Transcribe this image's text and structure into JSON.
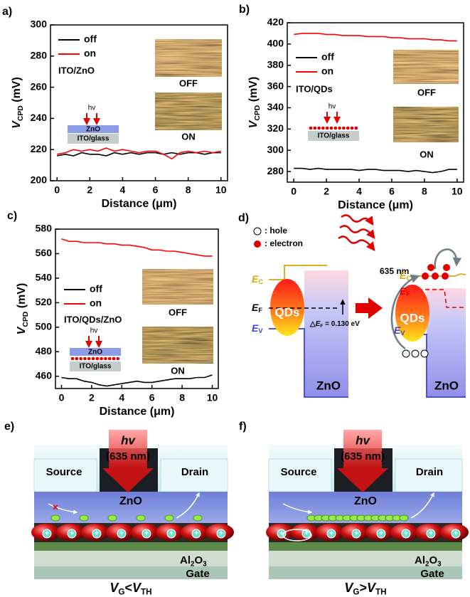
{
  "chart_data": [
    {
      "type": "line",
      "panel_label": "a)",
      "xlabel": "Distance (μm)",
      "ylabel": [
        "V",
        "CPD",
        " (mV)"
      ],
      "x": [
        0,
        0.5,
        1,
        1.5,
        2,
        2.5,
        3,
        3.5,
        4,
        4.5,
        5,
        5.5,
        6,
        6.5,
        7,
        7.5,
        8,
        8.5,
        9,
        9.5,
        10
      ],
      "xlim": [
        -0.4,
        10.4
      ],
      "xticks": [
        0,
        2,
        4,
        6,
        8,
        10
      ],
      "ylim": [
        200,
        300
      ],
      "yticks": [
        200,
        220,
        240,
        260,
        280,
        300
      ],
      "series": [
        {
          "name": "off",
          "color": "#000000",
          "values": [
            216,
            217,
            216,
            218,
            217,
            217,
            216,
            218,
            217,
            218,
            217,
            218,
            218,
            217,
            218,
            217,
            218,
            218,
            217,
            218,
            218
          ]
        },
        {
          "name": "on",
          "color": "#ff0000",
          "values": [
            217,
            218,
            220,
            219,
            220,
            219,
            221,
            219,
            220,
            219,
            218,
            219,
            219,
            217,
            214,
            218,
            219,
            218,
            219,
            218,
            219
          ]
        }
      ],
      "material": "ITO/ZnO",
      "image_labels": [
        "OFF",
        "ON"
      ],
      "diagram_labels": [
        "hv",
        "ZnO",
        "ITO/glass"
      ]
    },
    {
      "type": "line",
      "panel_label": "b)",
      "xlabel": "Distance (μm)",
      "ylabel": [
        "V",
        "CPD",
        " (mV)"
      ],
      "x": [
        0,
        0.5,
        1,
        1.5,
        2,
        2.5,
        3,
        3.5,
        4,
        4.5,
        5,
        5.5,
        6,
        6.5,
        7,
        7.5,
        8,
        8.5,
        9,
        9.5,
        10
      ],
      "xlim": [
        -0.4,
        10.4
      ],
      "xticks": [
        0,
        2,
        4,
        6,
        8,
        10
      ],
      "ylim": [
        270,
        420
      ],
      "yticks": [
        280,
        300,
        320,
        340,
        360,
        380,
        400,
        420
      ],
      "series": [
        {
          "name": "off",
          "color": "#000000",
          "values": [
            283,
            283,
            282,
            283,
            282,
            282,
            282,
            282,
            281,
            282,
            282,
            281,
            281,
            281,
            280,
            281,
            280,
            279,
            280,
            282,
            282
          ]
        },
        {
          "name": "on",
          "color": "#ff0000",
          "values": [
            409,
            410,
            410,
            410,
            409,
            409,
            408,
            408,
            408,
            407,
            407,
            407,
            406,
            406,
            405,
            405,
            405,
            404,
            404,
            403,
            403
          ]
        }
      ],
      "material": "ITO/QDs",
      "image_labels": [
        "OFF",
        "ON"
      ],
      "diagram_labels": [
        "hv",
        "ITO/glass"
      ]
    },
    {
      "type": "line",
      "panel_label": "c)",
      "xlabel": "Distance (μm)",
      "ylabel": [
        "V",
        "CPD",
        " (mV)"
      ],
      "x": [
        0,
        0.5,
        1,
        1.5,
        2,
        2.5,
        3,
        3.5,
        4,
        4.5,
        5,
        5.5,
        6,
        6.5,
        7,
        7.5,
        8,
        8.5,
        9,
        9.5,
        10
      ],
      "xlim": [
        -0.4,
        10.4
      ],
      "xticks": [
        0,
        2,
        4,
        6,
        8,
        10
      ],
      "ylim": [
        450,
        580
      ],
      "yticks": [
        460,
        480,
        500,
        520,
        540,
        560,
        580
      ],
      "series": [
        {
          "name": "off",
          "color": "#000000",
          "values": [
            459,
            458,
            458,
            456,
            455,
            453,
            452,
            453,
            454,
            455,
            456,
            455,
            455,
            456,
            457,
            458,
            458,
            458,
            459,
            459,
            461
          ]
        },
        {
          "name": "on",
          "color": "#ff0000",
          "values": [
            572,
            570,
            570,
            569,
            569,
            569,
            568,
            568,
            567,
            567,
            566,
            565,
            563,
            563,
            562,
            562,
            561,
            560,
            559,
            558,
            558
          ]
        }
      ],
      "material": "ITO/QDs/ZnO",
      "image_labels": [
        "OFF",
        "ON"
      ],
      "diagram_labels": [
        "hv",
        "ZnO",
        "ITO/glass"
      ]
    }
  ],
  "panel_d": {
    "label": "d)",
    "hole": ": hole",
    "electron": ": electron",
    "wavelength": "635 nm",
    "ec": [
      "E",
      "C"
    ],
    "ef": [
      "E",
      "F"
    ],
    "ev": [
      "E",
      "V"
    ],
    "qds": "QDs",
    "zno": "ZnO",
    "delta_ef": [
      "△",
      "E",
      "F",
      " = 0.130 eV"
    ]
  },
  "panel_e": {
    "label": "e)",
    "hv": "hv",
    "wavelength": "(635 nm)",
    "source": "Source",
    "drain": "Drain",
    "zno": "ZnO",
    "dielectric": [
      "Al",
      "2",
      "O",
      "3"
    ],
    "gate": "Gate",
    "condition": [
      "V",
      "G",
      "<",
      "V",
      "TH"
    ]
  },
  "panel_f": {
    "label": "f)",
    "hv": "hv",
    "wavelength": "(635 nm)",
    "source": "Source",
    "drain": "Drain",
    "zno": "ZnO",
    "dielectric": [
      "Al",
      "2",
      "O",
      "3"
    ],
    "gate": "Gate",
    "condition": [
      "V",
      "G",
      ">",
      "V",
      "TH"
    ]
  }
}
